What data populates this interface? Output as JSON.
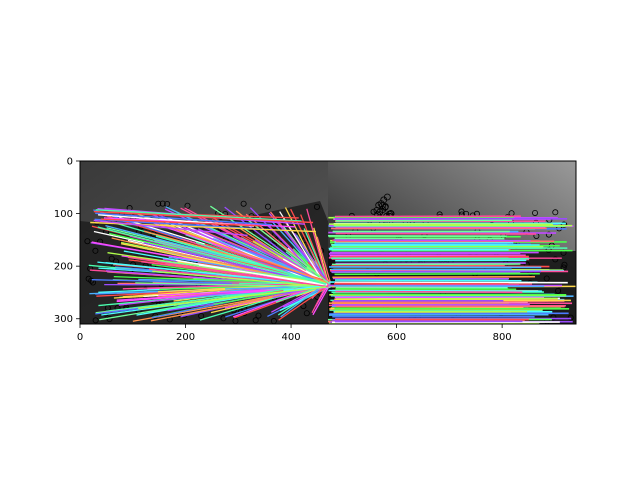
{
  "figure": {
    "description_kind": "feature-matching-visualization",
    "axes": {
      "x_ticks": [
        "0",
        "200",
        "400",
        "600",
        "800"
      ],
      "y_ticks": [
        "0",
        "100",
        "200",
        "300"
      ],
      "x_tick_values": [
        0,
        200,
        400,
        600,
        800
      ],
      "y_tick_values": [
        0,
        100,
        200,
        300
      ],
      "xlim": [
        0,
        940
      ],
      "ylim": [
        0,
        310
      ],
      "y_inverted": true
    },
    "image": {
      "left_panel_colors": [
        "#3a3a3a",
        "#5a5a5a"
      ],
      "right_panel_colors": [
        "#111111",
        "#9a9a9a"
      ],
      "split_x_data": 470
    },
    "matches": {
      "fan_target": [
        470,
        235
      ],
      "line_count": 260,
      "palette": [
        "#ff4b4b",
        "#4bff4b",
        "#4b7bff",
        "#ffd84b",
        "#ff4bff",
        "#4bffff",
        "#ff944b",
        "#9a4bff",
        "#b0ff4b",
        "#ff4b9a",
        "#4bffb0",
        "#ffffff",
        "#ff6f6f",
        "#6fff9a",
        "#c04bff",
        "#4bb0ff"
      ]
    }
  }
}
